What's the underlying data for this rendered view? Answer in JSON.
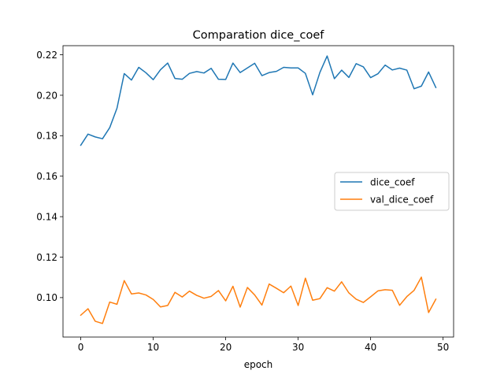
{
  "chart_data": {
    "type": "line",
    "title": "Comparation dice_coef",
    "xlabel": "epoch",
    "ylabel": "",
    "xlim": [
      -2.45,
      51.45
    ],
    "ylim": [
      0.0805,
      0.2245
    ],
    "xticks": [
      0,
      10,
      20,
      30,
      40,
      50
    ],
    "xtick_labels": [
      "0",
      "10",
      "20",
      "30",
      "40",
      "50"
    ],
    "yticks": [
      0.1,
      0.12,
      0.14,
      0.16,
      0.18,
      0.2,
      0.22
    ],
    "ytick_labels": [
      "0.10",
      "0.12",
      "0.14",
      "0.16",
      "0.18",
      "0.20",
      "0.22"
    ],
    "grid": false,
    "legend_position": "center-right",
    "x": [
      0,
      1,
      2,
      3,
      4,
      5,
      6,
      7,
      8,
      9,
      10,
      11,
      12,
      13,
      14,
      15,
      16,
      17,
      18,
      19,
      20,
      21,
      22,
      23,
      24,
      25,
      26,
      27,
      28,
      29,
      30,
      31,
      32,
      33,
      34,
      35,
      36,
      37,
      38,
      39,
      40,
      41,
      42,
      43,
      44,
      45,
      46,
      47,
      48,
      49
    ],
    "series": [
      {
        "name": "dice_coef",
        "color": "#1f77b4",
        "values": [
          0.1753,
          0.1808,
          0.1794,
          0.1785,
          0.184,
          0.1936,
          0.2107,
          0.2075,
          0.2138,
          0.2111,
          0.2077,
          0.2126,
          0.2159,
          0.2083,
          0.2079,
          0.2108,
          0.2117,
          0.211,
          0.2133,
          0.2079,
          0.2078,
          0.2159,
          0.2112,
          0.2135,
          0.2158,
          0.2097,
          0.2112,
          0.2118,
          0.2138,
          0.2135,
          0.2135,
          0.2108,
          0.2002,
          0.2113,
          0.2194,
          0.2082,
          0.2124,
          0.2088,
          0.2156,
          0.214,
          0.2087,
          0.2106,
          0.2149,
          0.2125,
          0.2134,
          0.2124,
          0.2032,
          0.2045,
          0.2115,
          0.2038
        ]
      },
      {
        "name": "val_dice_coef",
        "color": "#ff7f0e",
        "values": [
          0.0913,
          0.0945,
          0.0883,
          0.0872,
          0.0978,
          0.0967,
          0.1084,
          0.1018,
          0.1023,
          0.1013,
          0.0991,
          0.0954,
          0.0961,
          0.1026,
          0.1003,
          0.1032,
          0.1011,
          0.0997,
          0.1006,
          0.1035,
          0.0984,
          0.1056,
          0.0953,
          0.105,
          0.1013,
          0.0963,
          0.1067,
          0.1046,
          0.1024,
          0.1057,
          0.0961,
          0.1096,
          0.0987,
          0.0995,
          0.1049,
          0.1032,
          0.1078,
          0.1023,
          0.0992,
          0.0976,
          0.1004,
          0.1033,
          0.1039,
          0.1036,
          0.0962,
          0.1005,
          0.1036,
          0.1101,
          0.0926,
          0.0992
        ]
      }
    ]
  }
}
